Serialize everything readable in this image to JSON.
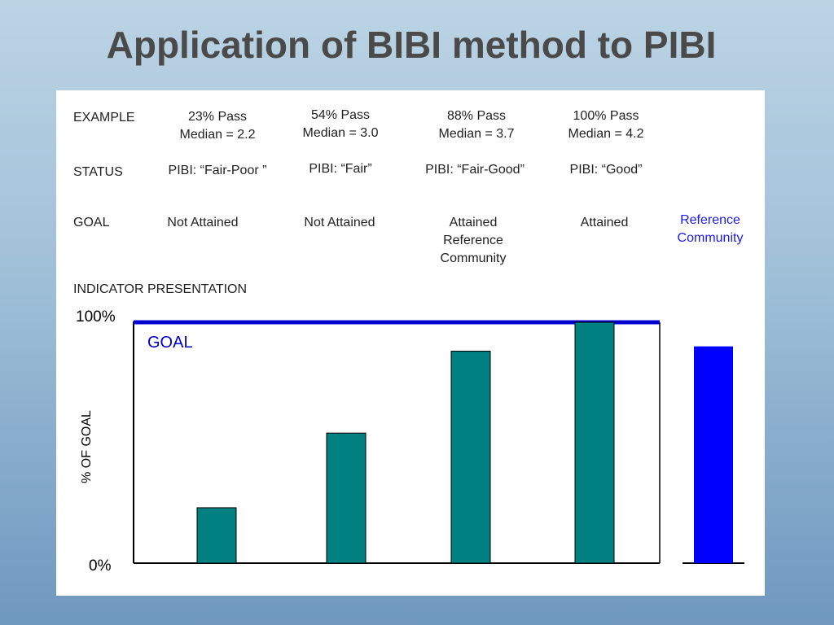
{
  "slide": {
    "title": "Application of BIBI method to PIBI"
  },
  "table": {
    "row_labels": {
      "example": "EXAMPLE",
      "status": "STATUS",
      "goal": "GOAL",
      "indicator": "INDICATOR PRESENTATION"
    },
    "columns": [
      {
        "pass": "23% Pass",
        "median": "Median = 2.2",
        "status": "PIBI: “Fair-Poor ”",
        "goal": [
          "Not Attained"
        ]
      },
      {
        "pass": "54% Pass",
        "median": "Median = 3.0",
        "status": "PIBI: “Fair”",
        "goal": [
          "Not Attained"
        ]
      },
      {
        "pass": "88% Pass",
        "median": "Median = 3.7",
        "status": "PIBI: “Fair-Good”",
        "goal": [
          "Attained",
          "Reference",
          "Community"
        ]
      },
      {
        "pass": "100% Pass",
        "median": "Median = 4.2",
        "status": "PIBI: “Good”",
        "goal": [
          "Attained"
        ]
      }
    ],
    "reference_label": [
      "Reference",
      "Community"
    ]
  },
  "chart_data": {
    "type": "bar",
    "categories": [
      "23% Pass",
      "54% Pass",
      "88% Pass",
      "100% Pass"
    ],
    "values": [
      23,
      54,
      88,
      100
    ],
    "reference_value": 90,
    "goal_value": 100,
    "goal_label": "GOAL",
    "ylabel": "% OF GOAL",
    "ylim": [
      0,
      100
    ],
    "yticks": [
      "0%",
      "100%"
    ],
    "bar_color": "#008080",
    "reference_color": "#0000ff",
    "goal_color": "#0000cc",
    "grid": false
  }
}
